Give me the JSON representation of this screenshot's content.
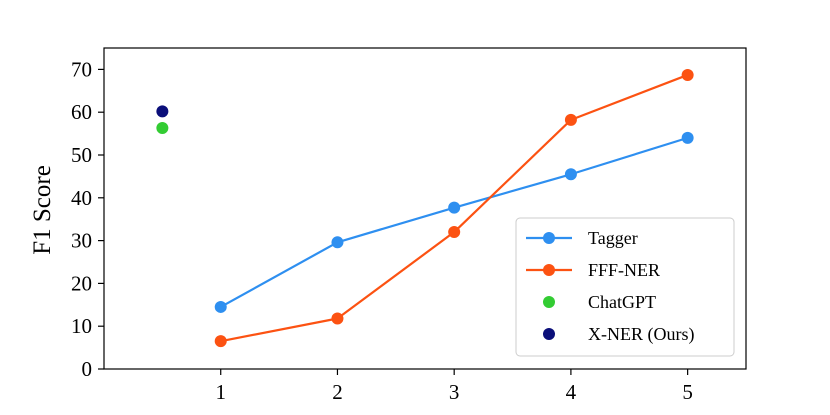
{
  "chart_data": {
    "type": "line",
    "title": "",
    "xlabel": "",
    "ylabel": "F1 Score",
    "xlim": [
      0.0,
      5.5
    ],
    "ylim": [
      0,
      75
    ],
    "xticks": [
      1,
      2,
      3,
      4,
      5
    ],
    "yticks": [
      0,
      10,
      20,
      30,
      40,
      50,
      60,
      70
    ],
    "grid": false,
    "legend_position": "lower-right",
    "series": [
      {
        "name": "Tagger",
        "kind": "line",
        "color": "#2e8ff0",
        "x": [
          1,
          2,
          3,
          4,
          5
        ],
        "y": [
          14.5,
          29.6,
          37.7,
          45.5,
          54.0
        ]
      },
      {
        "name": "FFF-NER",
        "kind": "line",
        "color": "#fc5212",
        "x": [
          1,
          2,
          3,
          4,
          5
        ],
        "y": [
          6.5,
          11.8,
          32.0,
          58.2,
          68.7
        ]
      },
      {
        "name": "ChatGPT",
        "kind": "scatter",
        "color": "#33cc33",
        "x": [
          0.5
        ],
        "y": [
          56.3
        ]
      },
      {
        "name": "X-NER (Ours)",
        "kind": "scatter",
        "color": "#0b0f7a",
        "x": [
          0.5
        ],
        "y": [
          60.2
        ]
      }
    ]
  }
}
